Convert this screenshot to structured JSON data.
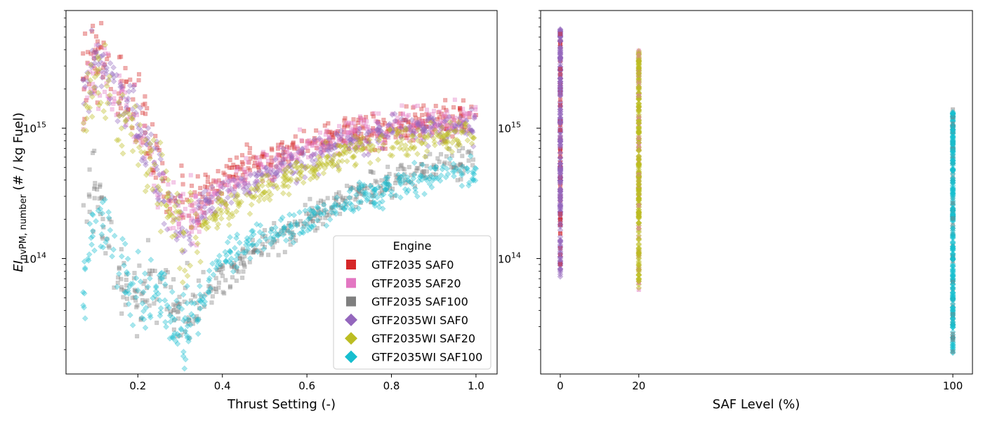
{
  "chart_data": [
    {
      "type": "scatter",
      "xlabel": "Thrust Setting (-)",
      "ylabel_main": "EI",
      "ylabel_sub": "nvPM, number",
      "ylabel_rest": " (# / kg Fuel)",
      "yscale": "log",
      "xlim": [
        0.03,
        1.05
      ],
      "ylim": [
        13000000000000.0,
        8000000000000000.0
      ],
      "x_ticks": [
        0.2,
        0.4,
        0.6,
        0.8,
        1.0
      ],
      "x_tick_labels": [
        "0.2",
        "0.4",
        "0.6",
        "0.8",
        "1.0"
      ],
      "y_ticks": [
        100000000000000.0,
        1000000000000000.0
      ],
      "y_tick_labels": [
        {
          "base": "10",
          "exp": "14"
        },
        {
          "base": "10",
          "exp": "15"
        }
      ],
      "legend": {
        "title": "Engine",
        "placement": "lower-right",
        "entries": [
          {
            "label": "GTF2035 SAF0",
            "marker": "square",
            "color": "#d62728"
          },
          {
            "label": "GTF2035 SAF20",
            "marker": "square",
            "color": "#e377c2"
          },
          {
            "label": "GTF2035 SAF100",
            "marker": "square",
            "color": "#7f7f7f"
          },
          {
            "label": "GTF2035WI SAF0",
            "marker": "diamond",
            "color": "#9467bd"
          },
          {
            "label": "GTF2035WI SAF20",
            "marker": "diamond",
            "color": "#bcbd22"
          },
          {
            "label": "GTF2035WI SAF100",
            "marker": "diamond",
            "color": "#17becf"
          }
        ]
      },
      "series": [
        {
          "name": "GTF2035 SAF0",
          "marker": "square",
          "color": "#d62728",
          "x": [
            0.07,
            0.1,
            0.13,
            0.16,
            0.2,
            0.24,
            0.28,
            0.31,
            0.35,
            0.4,
            0.45,
            0.5,
            0.55,
            0.6,
            0.7,
            0.8,
            0.9,
            1.0
          ],
          "y": [
            2200000000000000.0,
            4000000000000000.0,
            3000000000000000.0,
            2200000000000000.0,
            1500000000000000.0,
            600000000000000.0,
            300000000000000.0,
            250000000000000.0,
            280000000000000.0,
            450000000000000.0,
            500000000000000.0,
            550000000000000.0,
            650000000000000.0,
            750000000000000.0,
            900000000000000.0,
            1000000000000000.0,
            1100000000000000.0,
            1200000000000000.0
          ]
        },
        {
          "name": "GTF2035 SAF20",
          "marker": "square",
          "color": "#e377c2",
          "x": [
            0.07,
            0.1,
            0.13,
            0.16,
            0.2,
            0.24,
            0.28,
            0.31,
            0.35,
            0.4,
            0.5,
            0.6,
            0.7,
            0.8,
            0.9,
            1.0
          ],
          "y": [
            1500000000000000.0,
            3200000000000000.0,
            2500000000000000.0,
            1800000000000000.0,
            1100000000000000.0,
            500000000000000.0,
            250000000000000.0,
            200000000000000.0,
            230000000000000.0,
            350000000000000.0,
            500000000000000.0,
            700000000000000.0,
            900000000000000.0,
            1050000000000000.0,
            1100000000000000.0,
            1200000000000000.0
          ]
        },
        {
          "name": "GTF2035 SAF100",
          "marker": "square",
          "color": "#7f7f7f",
          "x": [
            0.07,
            0.1,
            0.13,
            0.16,
            0.2,
            0.24,
            0.28,
            0.31,
            0.35,
            0.4,
            0.5,
            0.6,
            0.7,
            0.8,
            0.9,
            1.0
          ],
          "y": [
            200000000000000.0,
            300000000000000.0,
            140000000000000.0,
            70000000000000.0,
            50000000000000.0,
            60000000000000.0,
            50000000000000.0,
            30000000000000.0,
            50000000000000.0,
            70000000000000.0,
            130000000000000.0,
            200000000000000.0,
            300000000000000.0,
            400000000000000.0,
            500000000000000.0,
            550000000000000.0
          ]
        },
        {
          "name": "GTF2035WI SAF0",
          "marker": "diamond",
          "color": "#9467bd",
          "x": [
            0.07,
            0.1,
            0.13,
            0.16,
            0.2,
            0.24,
            0.28,
            0.31,
            0.35,
            0.4,
            0.45,
            0.5,
            0.6,
            0.7,
            0.8,
            0.9,
            1.0
          ],
          "y": [
            1500000000000000.0,
            3500000000000000.0,
            2500000000000000.0,
            1800000000000000.0,
            1100000000000000.0,
            500000000000000.0,
            250000000000000.0,
            180000000000000.0,
            230000000000000.0,
            300000000000000.0,
            360000000000000.0,
            450000000000000.0,
            600000000000000.0,
            800000000000000.0,
            950000000000000.0,
            1000000000000000.0,
            1050000000000000.0
          ]
        },
        {
          "name": "GTF2035WI SAF20",
          "marker": "diamond",
          "color": "#bcbd22",
          "x": [
            0.07,
            0.1,
            0.13,
            0.16,
            0.2,
            0.24,
            0.28,
            0.31,
            0.35,
            0.4,
            0.5,
            0.6,
            0.7,
            0.8,
            0.9,
            1.0
          ],
          "y": [
            1000000000000000.0,
            2500000000000000.0,
            1800000000000000.0,
            1200000000000000.0,
            800000000000000.0,
            400000000000000.0,
            200000000000000.0,
            150000000000000.0,
            180000000000000.0,
            230000000000000.0,
            350000000000000.0,
            450000000000000.0,
            650000000000000.0,
            800000000000000.0,
            850000000000000.0,
            900000000000000.0
          ]
        },
        {
          "name": "GTF2035WI SAF100",
          "marker": "diamond",
          "color": "#17becf",
          "x": [
            0.07,
            0.1,
            0.13,
            0.16,
            0.2,
            0.24,
            0.28,
            0.31,
            0.35,
            0.4,
            0.5,
            0.6,
            0.7,
            0.8,
            0.9,
            1.0
          ],
          "y": [
            50000000000000.0,
            300000000000000.0,
            150000000000000.0,
            80000000000000.0,
            50000000000000.0,
            60000000000000.0,
            40000000000000.0,
            25000000000000.0,
            50000000000000.0,
            100000000000000.0,
            150000000000000.0,
            200000000000000.0,
            280000000000000.0,
            350000000000000.0,
            420000000000000.0,
            480000000000000.0
          ]
        }
      ]
    },
    {
      "type": "scatter",
      "xlabel": "SAF Level (%)",
      "yscale": "log",
      "xlim": [
        -5,
        105
      ],
      "ylim": [
        13000000000000.0,
        8000000000000000.0
      ],
      "x_ticks": [
        0,
        20,
        100
      ],
      "x_tick_labels": [
        "0",
        "20",
        "100"
      ],
      "y_ticks": [
        100000000000000.0,
        1000000000000000.0
      ],
      "y_tick_labels": [
        {
          "base": "10",
          "exp": "14"
        },
        {
          "base": "10",
          "exp": "15"
        }
      ],
      "strips": [
        {
          "saf": 0,
          "ymin": 70000000000000.0,
          "ymax": 6000000000000000.0,
          "colors": [
            "#9467bd",
            "#d62728"
          ]
        },
        {
          "saf": 20,
          "ymin": 55000000000000.0,
          "ymax": 4000000000000000.0,
          "colors": [
            "#bcbd22",
            "#e377c2"
          ]
        },
        {
          "saf": 100,
          "ymin": 18000000000000.0,
          "ymax": 1400000000000000.0,
          "colors": [
            "#17becf",
            "#7f7f7f"
          ]
        }
      ]
    }
  ]
}
